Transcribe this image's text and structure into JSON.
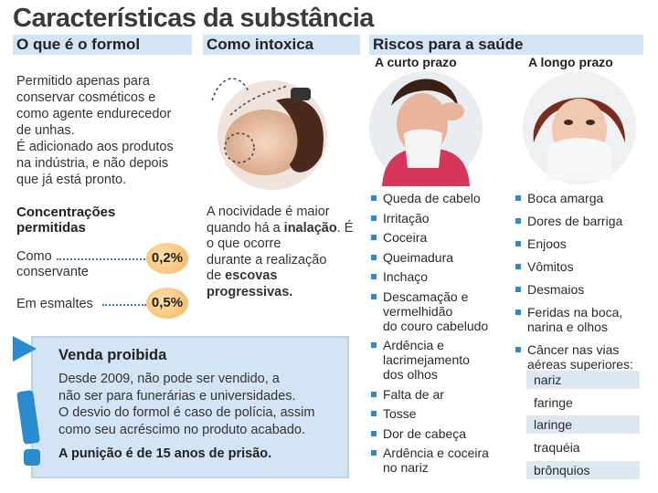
{
  "title": "Características da substância",
  "sections": {
    "what": {
      "header": "O que é o formol",
      "p1": [
        "Permitido apenas para",
        "conservar cosméticos e",
        "como agente endurecedor",
        "de unhas."
      ],
      "p2": [
        "É adicionado aos produtos",
        "na indústria, e não depois",
        "que já está pronto."
      ]
    },
    "concentrations": {
      "title": [
        "Concentrações",
        "permitidas"
      ],
      "rows": [
        {
          "label": [
            "Como",
            "conservante"
          ],
          "value": "0,2%"
        },
        {
          "label": [
            "Em esmaltes"
          ],
          "value": "0,5%"
        }
      ]
    },
    "intox": {
      "header": "Como intoxica",
      "text_pre": [
        "A nocividade é maior",
        "quando há a"
      ],
      "text_bold1": "inalação",
      "text_mid": [
        ". É o que ocorre",
        "durante a realização",
        "de"
      ],
      "text_bold2": [
        "escovas",
        "progressivas."
      ]
    },
    "risks": {
      "header": "Riscos para a saúde",
      "short_title": "A curto prazo",
      "long_title": "A longo prazo",
      "short_items": [
        [
          "Queda de cabelo"
        ],
        [
          "Irritação"
        ],
        [
          "Coceira"
        ],
        [
          "Queimadura"
        ],
        [
          "Inchaço"
        ],
        [
          "Descamação e",
          "vermelhidão",
          "do couro cabeludo"
        ],
        [
          "Ardência e",
          "lacrimejamento",
          "dos olhos"
        ],
        [
          "Falta de ar"
        ],
        [
          "Tosse"
        ],
        [
          "Dor de cabeça"
        ],
        [
          "Ardência e coceira",
          "no nariz"
        ]
      ],
      "long_items": [
        [
          "Boca amarga"
        ],
        [
          "Dores de barriga"
        ],
        [
          "Enjoos"
        ],
        [
          "Vômitos"
        ],
        [
          "Desmaios"
        ],
        [
          "Feridas na boca,",
          "narina e olhos"
        ],
        [
          "Câncer nas vias",
          "aéreas superiores:"
        ]
      ],
      "airways": [
        "nariz",
        "faringe",
        "laringe",
        "traquéia",
        "brônquios"
      ]
    },
    "venda": {
      "title": "Venda proibida",
      "lines": [
        "Desde 2009, não pode ser vendido, a",
        "não ser para funerárias e universidades.",
        "O desvio do formol é caso de polícia, assim",
        "como seu acréscimo no produto acabado."
      ],
      "punishment": "A punição é de 15 anos de prisão."
    }
  },
  "colors": {
    "accent": "#2a8bd0",
    "header_bg": "#d3e4f4",
    "badge": "#f4b45e"
  }
}
